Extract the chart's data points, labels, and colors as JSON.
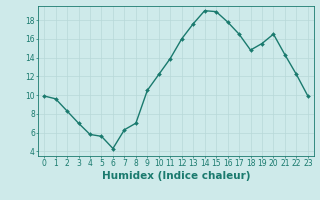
{
  "x": [
    0,
    1,
    2,
    3,
    4,
    5,
    6,
    7,
    8,
    9,
    10,
    11,
    12,
    13,
    14,
    15,
    16,
    17,
    18,
    19,
    20,
    21,
    22,
    23
  ],
  "y": [
    9.9,
    9.6,
    8.3,
    7.0,
    5.8,
    5.6,
    4.3,
    6.3,
    7.0,
    10.5,
    12.2,
    13.9,
    16.0,
    17.6,
    19.0,
    18.9,
    17.8,
    16.5,
    14.8,
    15.5,
    16.5,
    14.3,
    12.2,
    9.9
  ],
  "line_color": "#1a7a6e",
  "marker": "D",
  "marker_size": 2,
  "line_width": 1.0,
  "bg_color": "#ceeaea",
  "grid_color": "#b8d8d8",
  "axis_color": "#1a7a6e",
  "xlabel": "Humidex (Indice chaleur)",
  "xlim": [
    -0.5,
    23.5
  ],
  "ylim": [
    3.5,
    19.5
  ],
  "yticks": [
    4,
    6,
    8,
    10,
    12,
    14,
    16,
    18
  ],
  "xticks": [
    0,
    1,
    2,
    3,
    4,
    5,
    6,
    7,
    8,
    9,
    10,
    11,
    12,
    13,
    14,
    15,
    16,
    17,
    18,
    19,
    20,
    21,
    22,
    23
  ],
  "tick_fontsize": 5.5,
  "label_fontsize": 7.5
}
